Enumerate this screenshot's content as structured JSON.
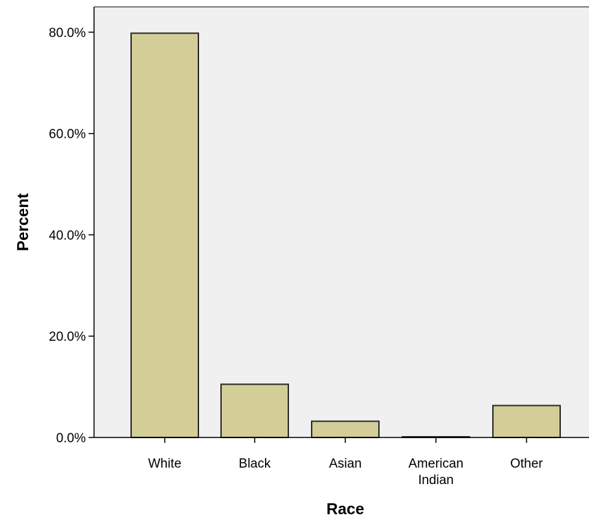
{
  "chart_data": {
    "type": "bar",
    "categories": [
      [
        "White"
      ],
      [
        "Black"
      ],
      [
        "Asian"
      ],
      [
        "American",
        "Indian"
      ],
      [
        "Other"
      ]
    ],
    "values": [
      79.8,
      10.5,
      3.2,
      0.1,
      6.3
    ],
    "xlabel": "Race",
    "ylabel": "Percent",
    "ylim": [
      0,
      85
    ],
    "yticks": [
      0,
      20,
      40,
      60,
      80
    ],
    "ytick_labels": [
      "0.0%",
      "20.0%",
      "40.0%",
      "60.0%",
      "80.0%"
    ],
    "grid": false,
    "colors": {
      "bar_fill": "#d3ce97",
      "bar_stroke": "#2b2b2b",
      "plot_background": "#f0f0f0",
      "axis": "#000000"
    }
  }
}
